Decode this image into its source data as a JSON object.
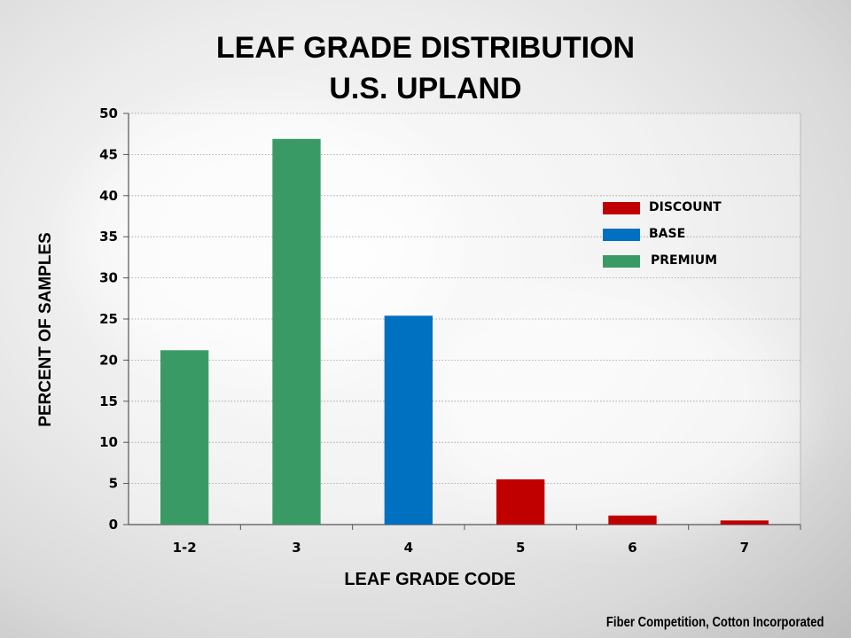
{
  "chart_data": {
    "type": "bar",
    "title": "LEAF GRADE DISTRIBUTION",
    "subtitle": "U.S. UPLAND",
    "xlabel": "LEAF GRADE CODE",
    "ylabel": "PERCENT OF SAMPLES",
    "ylim": [
      0,
      50
    ],
    "yticks": [
      0,
      5,
      10,
      15,
      20,
      25,
      30,
      35,
      40,
      45,
      50
    ],
    "grid": true,
    "categories": [
      "1-2",
      "3",
      "4",
      "5",
      "6",
      "7"
    ],
    "values": [
      21.2,
      46.9,
      25.4,
      5.5,
      1.1,
      0.5
    ],
    "bar_classes": [
      "PREMIUM",
      "PREMIUM",
      "BASE",
      "DISCOUNT",
      "DISCOUNT",
      "DISCOUNT"
    ],
    "legend_position": "right",
    "legend": [
      {
        "name": "DISCOUNT",
        "color": "#c00000"
      },
      {
        "name": "BASE",
        "color": "#0070c0"
      },
      {
        "name": "PREMIUM",
        "color": "#3a9a66"
      }
    ]
  },
  "credit": "Fiber Competition, Cotton Incorporated"
}
